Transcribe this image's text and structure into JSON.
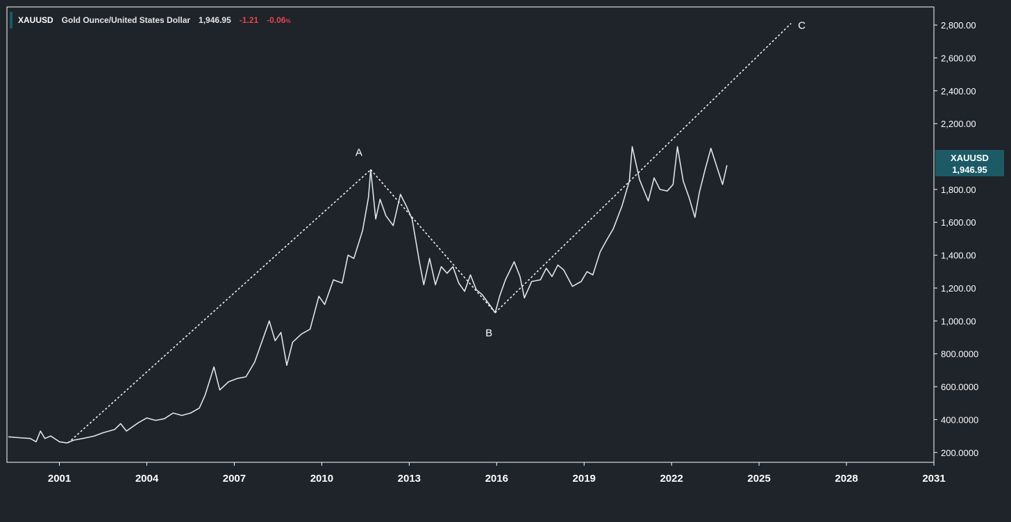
{
  "header": {
    "symbol": "XAUUSD",
    "name": "Gold Ounce/United States Dollar",
    "last": "1,946.95",
    "change": "-1.21",
    "change_pct": "-0.06",
    "pct_unit": "%"
  },
  "price_badge": {
    "symbol": "XAUUSD",
    "value": "1,946.95"
  },
  "colors": {
    "background": "#1f232a",
    "price_line": "#dbe7ea",
    "axis_border": "#ffffff",
    "negative": "#e0474c",
    "badge": "#1c5a66"
  },
  "chart_data": {
    "type": "line",
    "title": "",
    "xlabel": "",
    "ylabel": "",
    "xlim": [
      1999.2,
      2031.0
    ],
    "ylim": [
      140,
      2910
    ],
    "grid": false,
    "x_ticks": [
      "2001",
      "2004",
      "2007",
      "2010",
      "2013",
      "2016",
      "2019",
      "2022",
      "2025",
      "2028",
      "2031"
    ],
    "x_tick_values": [
      2001,
      2004,
      2007,
      2010,
      2013,
      2016,
      2019,
      2022,
      2025,
      2028,
      2031
    ],
    "y_ticks": [
      "2,800.00",
      "2,600.00",
      "2,400.00",
      "2,200.00",
      "1,800.00",
      "1,600.00",
      "1,400.00",
      "1,200.00",
      "1,000.00",
      "800.0000",
      "600.0000",
      "400.0000",
      "200.0000"
    ],
    "y_tick_values": [
      2800,
      2600,
      2400,
      2200,
      1800,
      1600,
      1400,
      1200,
      1000,
      800,
      600,
      400,
      200
    ],
    "series": [
      {
        "values": [
          [
            1999.25,
            295
          ],
          [
            1999.6,
            290
          ],
          [
            2000.0,
            285
          ],
          [
            2000.2,
            265
          ],
          [
            2000.35,
            330
          ],
          [
            2000.5,
            285
          ],
          [
            2000.7,
            300
          ],
          [
            2001.0,
            265
          ],
          [
            2001.25,
            258
          ],
          [
            2001.5,
            275
          ],
          [
            2001.8,
            285
          ],
          [
            2002.2,
            300
          ],
          [
            2002.5,
            320
          ],
          [
            2002.9,
            340
          ],
          [
            2003.1,
            375
          ],
          [
            2003.3,
            330
          ],
          [
            2003.7,
            380
          ],
          [
            2004.0,
            410
          ],
          [
            2004.3,
            395
          ],
          [
            2004.6,
            405
          ],
          [
            2004.9,
            440
          ],
          [
            2005.2,
            425
          ],
          [
            2005.5,
            440
          ],
          [
            2005.8,
            470
          ],
          [
            2006.0,
            550
          ],
          [
            2006.3,
            720
          ],
          [
            2006.5,
            580
          ],
          [
            2006.8,
            630
          ],
          [
            2007.1,
            650
          ],
          [
            2007.4,
            660
          ],
          [
            2007.7,
            750
          ],
          [
            2008.0,
            900
          ],
          [
            2008.2,
            1000
          ],
          [
            2008.4,
            880
          ],
          [
            2008.6,
            930
          ],
          [
            2008.8,
            730
          ],
          [
            2009.0,
            870
          ],
          [
            2009.3,
            920
          ],
          [
            2009.6,
            950
          ],
          [
            2009.9,
            1150
          ],
          [
            2010.1,
            1100
          ],
          [
            2010.4,
            1250
          ],
          [
            2010.7,
            1230
          ],
          [
            2010.9,
            1400
          ],
          [
            2011.1,
            1380
          ],
          [
            2011.4,
            1550
          ],
          [
            2011.6,
            1750
          ],
          [
            2011.68,
            1920
          ],
          [
            2011.85,
            1620
          ],
          [
            2012.0,
            1740
          ],
          [
            2012.2,
            1640
          ],
          [
            2012.45,
            1580
          ],
          [
            2012.7,
            1770
          ],
          [
            2012.9,
            1700
          ],
          [
            2013.1,
            1620
          ],
          [
            2013.35,
            1360
          ],
          [
            2013.5,
            1220
          ],
          [
            2013.7,
            1380
          ],
          [
            2013.9,
            1220
          ],
          [
            2014.1,
            1330
          ],
          [
            2014.3,
            1290
          ],
          [
            2014.5,
            1330
          ],
          [
            2014.7,
            1230
          ],
          [
            2014.9,
            1180
          ],
          [
            2015.1,
            1280
          ],
          [
            2015.3,
            1190
          ],
          [
            2015.5,
            1160
          ],
          [
            2015.75,
            1100
          ],
          [
            2015.95,
            1050
          ],
          [
            2016.1,
            1150
          ],
          [
            2016.3,
            1250
          ],
          [
            2016.6,
            1360
          ],
          [
            2016.8,
            1270
          ],
          [
            2016.95,
            1140
          ],
          [
            2017.2,
            1240
          ],
          [
            2017.5,
            1250
          ],
          [
            2017.7,
            1320
          ],
          [
            2017.9,
            1270
          ],
          [
            2018.1,
            1340
          ],
          [
            2018.3,
            1310
          ],
          [
            2018.6,
            1210
          ],
          [
            2018.9,
            1240
          ],
          [
            2019.1,
            1300
          ],
          [
            2019.3,
            1280
          ],
          [
            2019.55,
            1420
          ],
          [
            2019.8,
            1500
          ],
          [
            2020.0,
            1560
          ],
          [
            2020.3,
            1700
          ],
          [
            2020.55,
            1850
          ],
          [
            2020.65,
            2060
          ],
          [
            2020.9,
            1860
          ],
          [
            2021.2,
            1730
          ],
          [
            2021.4,
            1870
          ],
          [
            2021.6,
            1800
          ],
          [
            2021.85,
            1790
          ],
          [
            2022.05,
            1830
          ],
          [
            2022.2,
            2060
          ],
          [
            2022.4,
            1850
          ],
          [
            2022.6,
            1750
          ],
          [
            2022.8,
            1630
          ],
          [
            2022.95,
            1780
          ],
          [
            2023.15,
            1920
          ],
          [
            2023.35,
            2050
          ],
          [
            2023.55,
            1940
          ],
          [
            2023.75,
            1830
          ],
          [
            2023.9,
            1946.95
          ]
        ]
      }
    ],
    "annotations": [
      {
        "label": "A",
        "x": 2011.68,
        "y": 1920
      },
      {
        "label": "B",
        "x": 2015.95,
        "y": 1050
      },
      {
        "label": "C",
        "x": 2026.1,
        "y": 2810
      }
    ],
    "trendlines": [
      {
        "points": [
          [
            2001.3,
            258
          ],
          [
            2011.68,
            1920
          ]
        ]
      },
      {
        "points": [
          [
            2011.68,
            1920
          ],
          [
            2015.95,
            1050
          ]
        ]
      },
      {
        "points": [
          [
            2015.95,
            1050
          ],
          [
            2026.1,
            2810
          ]
        ]
      }
    ]
  }
}
